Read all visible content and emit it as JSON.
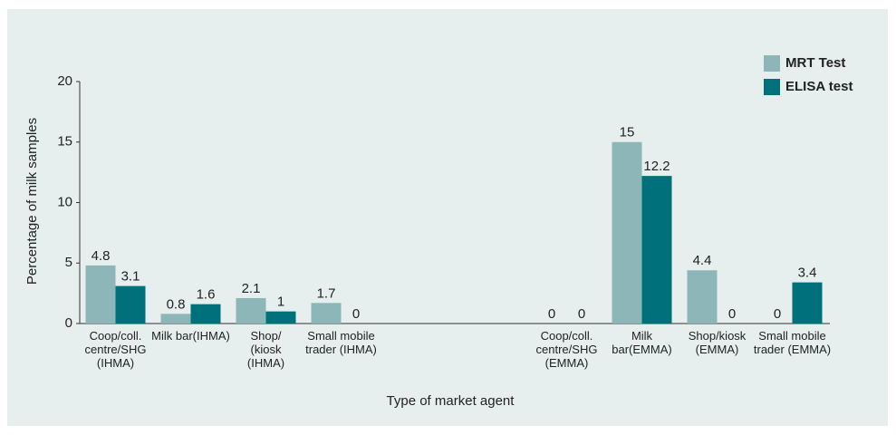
{
  "chart_data": {
    "type": "bar",
    "x_label": "Type of market agent",
    "y_label": "Percentage of milk samples",
    "categories": [
      "Coop/coll.\ncentre/SHG\n(IHMA)",
      "Milk bar(IHMA)",
      "Shop/\n(kiosk\n(IHMA)",
      "Small mobile\ntrader (IHMA)",
      null,
      null,
      "Coop/coll.\ncentre/SHG\n(EMMA)",
      "Milk bar(EMMA)",
      "Shop/kiosk\n(EMMA)",
      "Small mobile\ntrader (EMMA)"
    ],
    "series": [
      {
        "name": "MRT Test",
        "color": "#8db6b8",
        "values": [
          4.8,
          0.8,
          2.1,
          1.7,
          null,
          null,
          0,
          15,
          4.4,
          0
        ]
      },
      {
        "name": "ELISA test",
        "color": "#00707a",
        "values": [
          3.1,
          1.6,
          1,
          0,
          null,
          null,
          0,
          12.2,
          0,
          3.4
        ]
      }
    ],
    "ylim": [
      0,
      20
    ],
    "yticks": [
      0,
      5,
      10,
      15,
      20
    ],
    "grid": false,
    "legend": "top-right"
  }
}
